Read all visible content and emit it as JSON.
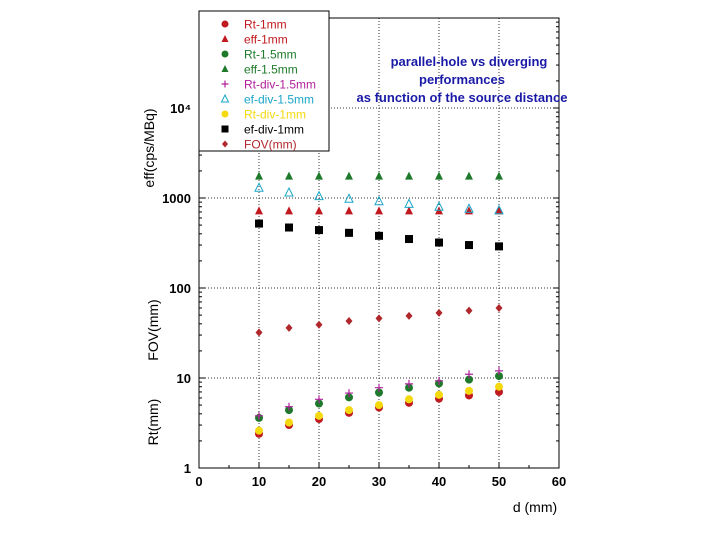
{
  "chart_data": {
    "type": "scatter",
    "title_lines": [
      "parallel-hole vs diverging",
      "performances",
      "as function of the source distance"
    ],
    "xlabel": "d (mm)",
    "ylabels": [
      "eff(cps/MBq)",
      "FOV(mm)",
      "Rt(mm)"
    ],
    "xlim": [
      0,
      60
    ],
    "ylim": [
      1,
      100000
    ],
    "yscale": "log",
    "grid": "dotted",
    "legend_position": "top-left",
    "x_ticks": [
      0,
      10,
      20,
      30,
      40,
      50,
      60
    ],
    "x_tick_labels": [
      "0",
      "10",
      "20",
      "30",
      "40",
      "50",
      "60"
    ],
    "y_ticks": [
      1,
      10,
      100,
      1000,
      10000
    ],
    "y_tick_labels": [
      "1",
      "10",
      "100",
      "1000",
      "10⁴"
    ],
    "x": [
      10,
      15,
      20,
      25,
      30,
      35,
      40,
      45,
      50
    ],
    "series": [
      {
        "name": "Rt-1mm",
        "marker": "circle",
        "color": "#c0191f",
        "values": [
          2.4,
          3.0,
          3.5,
          4.1,
          4.7,
          5.3,
          5.9,
          6.4,
          7.0
        ]
      },
      {
        "name": "eff-1mm",
        "marker": "triangle",
        "color": "#c0191f",
        "values": [
          720,
          720,
          720,
          720,
          720,
          720,
          720,
          720,
          720
        ]
      },
      {
        "name": "Rt-1.5mm",
        "marker": "circle",
        "color": "#1e7a2a",
        "values": [
          3.6,
          4.4,
          5.2,
          6.1,
          6.9,
          7.8,
          8.7,
          9.6,
          10.5
        ]
      },
      {
        "name": "eff-1.5mm",
        "marker": "triangle",
        "color": "#1e7a2a",
        "values": [
          1750,
          1750,
          1750,
          1750,
          1750,
          1750,
          1750,
          1750,
          1750
        ]
      },
      {
        "name": "Rt-div-1.5mm",
        "marker": "plus",
        "color": "#b1219c",
        "values": [
          3.8,
          4.8,
          5.8,
          6.8,
          7.8,
          8.6,
          9.3,
          11.0,
          12.0
        ]
      },
      {
        "name": "ef-div-1.5mm",
        "marker": "triangle-open",
        "color": "#1aa6c8",
        "values": [
          1300,
          1150,
          1050,
          980,
          920,
          860,
          800,
          760,
          730
        ]
      },
      {
        "name": "Rt-div-1mm",
        "marker": "circle",
        "color": "#f5d90f",
        "values": [
          2.6,
          3.2,
          3.8,
          4.4,
          5.0,
          5.8,
          6.5,
          7.2,
          8.0
        ]
      },
      {
        "name": "ef-div-1mm",
        "marker": "square",
        "color": "#000000",
        "values": [
          520,
          470,
          440,
          410,
          380,
          350,
          320,
          300,
          290
        ]
      },
      {
        "name": "FOV(mm)",
        "marker": "diamond",
        "color": "#b0272c",
        "values": [
          32,
          36,
          39,
          43,
          46,
          49,
          53,
          56,
          60
        ]
      }
    ]
  }
}
